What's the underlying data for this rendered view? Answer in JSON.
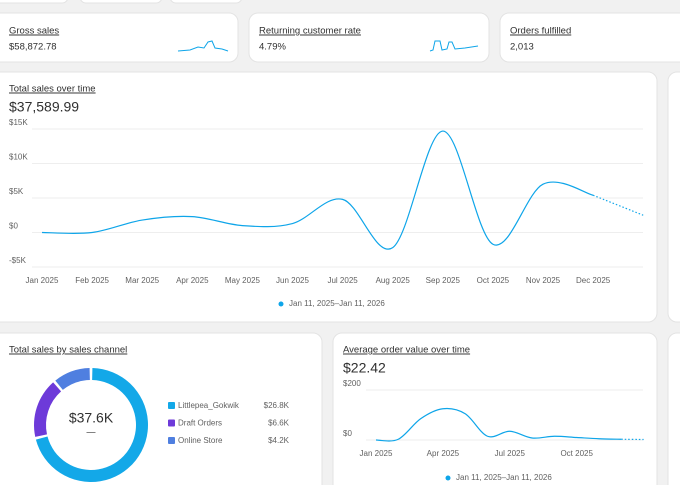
{
  "metrics": [
    {
      "title": "Gross sales",
      "value": "$58,872.78"
    },
    {
      "title": "Returning customer rate",
      "value": "4.79%"
    },
    {
      "title": "Orders fulfilled",
      "value": "2,013"
    }
  ],
  "chart_data": [
    {
      "type": "line",
      "title": "Total sales over time",
      "total": "$37,589.99",
      "categories": [
        "Jan 2025",
        "Feb 2025",
        "Mar 2025",
        "Apr 2025",
        "May 2025",
        "Jun 2025",
        "Jul 2025",
        "Aug 2025",
        "Sep 2025",
        "Oct 2025",
        "Nov 2025",
        "Dec 2025",
        null
      ],
      "series": [
        {
          "name": "Jan 11, 2025–Jan 11, 2026",
          "color": "#0ea5e9",
          "values": [
            0,
            0,
            1800,
            2300,
            1000,
            1300,
            4800,
            -2200,
            14700,
            -1700,
            7000,
            5400,
            2500
          ]
        }
      ],
      "ylim": [
        -5000,
        15000
      ],
      "yticks": [
        {
          "value": -5000,
          "label": "-$5K"
        },
        {
          "value": 0,
          "label": "$0"
        },
        {
          "value": 5000,
          "label": "$5K"
        },
        {
          "value": 10000,
          "label": "$10K"
        },
        {
          "value": 15000,
          "label": "$15K"
        }
      ],
      "grid": true
    },
    {
      "type": "donut",
      "title": "Total sales by sales channel",
      "total": "$37.6K",
      "total_sub": "—",
      "categories": [
        "Littlepea_Gokwik",
        "Draft Orders",
        "Online Store"
      ],
      "values": [
        26800,
        6600,
        4200
      ],
      "value_labels": [
        "$26.8K",
        "$6.6K",
        "$4.2K"
      ],
      "colors": [
        "#13a8e8",
        "#6d3ad9",
        "#4f7fe0"
      ]
    },
    {
      "type": "line",
      "title": "Average order value over time",
      "total": "$22.42",
      "categories": [
        "Jan 2025",
        null,
        null,
        "Apr 2025",
        null,
        null,
        "Jul 2025",
        null,
        null,
        "Oct 2025",
        null,
        null,
        null
      ],
      "series": [
        {
          "name": "Jan 11, 2025–Jan 11, 2026",
          "color": "#0ea5e9",
          "values": [
            0,
            3,
            85,
            125,
            105,
            15,
            35,
            8,
            15,
            10,
            5,
            3,
            2
          ]
        }
      ],
      "ylim": [
        0,
        200
      ],
      "yticks": [
        {
          "value": 0,
          "label": "$0"
        },
        {
          "value": 200,
          "label": "$200"
        }
      ],
      "grid": true
    }
  ]
}
